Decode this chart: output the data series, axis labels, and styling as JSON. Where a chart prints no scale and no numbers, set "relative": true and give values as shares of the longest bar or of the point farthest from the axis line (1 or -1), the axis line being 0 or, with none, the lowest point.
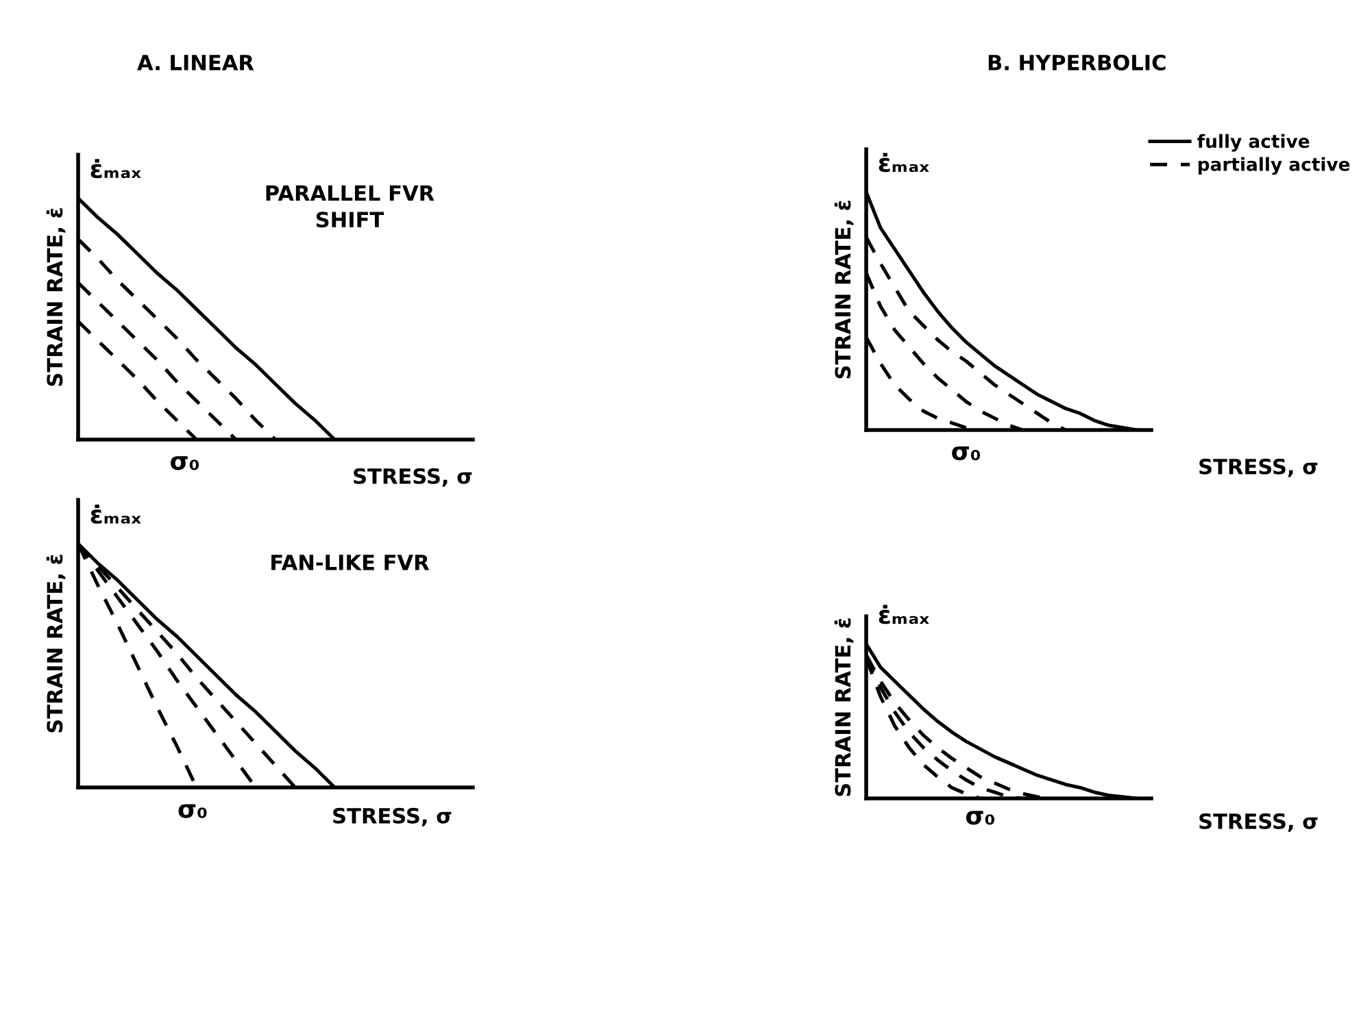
{
  "chart_data": [
    {
      "type": "line",
      "title": "A. LINEAR",
      "xlabel": "STRESS, σ",
      "ylabel": "STRAIN RATE, ε̇",
      "relative": true,
      "categories": [
        null,
        null,
        null,
        null,
        null,
        null,
        null,
        null,
        null,
        null,
        null,
        null,
        null,
        null,
        null,
        null,
        null,
        null,
        null,
        null,
        null
      ],
      "annotations": [
        "ε̇ₘₐₓ",
        "σ₀",
        "PARALLEL FVR\nSHIFT"
      ],
      "series": [
        {
          "color": "#000000",
          "line_style": "solid",
          "values": [
            1,
            0.92,
            0.85,
            0.77,
            0.69,
            0.62,
            0.54,
            0.46,
            0.38,
            0.31,
            0.23,
            0.15,
            0.08,
            0,
            null,
            null,
            null,
            null,
            null,
            null,
            null
          ]
        },
        {
          "color": "#000000",
          "line_style": "dashed",
          "values": [
            0.83,
            0.75,
            0.66,
            0.58,
            0.5,
            0.42,
            0.33,
            0.25,
            0.17,
            0.08,
            0,
            null,
            null,
            null,
            null,
            null,
            null,
            null,
            null,
            null,
            null
          ]
        },
        {
          "color": "#000000",
          "line_style": "dashed",
          "values": [
            0.65,
            0.57,
            0.49,
            0.41,
            0.33,
            0.24,
            0.16,
            0.08,
            0,
            null,
            null,
            null,
            null,
            null,
            null,
            null,
            null,
            null,
            null,
            null,
            null
          ]
        },
        {
          "color": "#000000",
          "line_style": "dashed",
          "values": [
            0.49,
            0.41,
            0.33,
            0.25,
            0.16,
            0.08,
            0,
            null,
            null,
            null,
            null,
            null,
            null,
            null,
            null,
            null,
            null,
            null,
            null,
            null,
            null
          ]
        }
      ]
    },
    {
      "type": "line",
      "title": "B. HYPERBOLIC",
      "xlabel": "STRESS, σ",
      "ylabel": "STRAIN RATE, ε̇",
      "relative": true,
      "legend": "top right",
      "categories": [
        null,
        null,
        null,
        null,
        null,
        null,
        null,
        null,
        null,
        null,
        null,
        null,
        null,
        null,
        null,
        null,
        null,
        null,
        null,
        null,
        null
      ],
      "annotations": [
        "ε̇ₘₐₓ",
        "σ₀"
      ],
      "series": [
        {
          "name": "fully active",
          "color": "#000000",
          "line_style": "solid",
          "values": [
            1,
            0.85,
            0.76,
            0.67,
            0.58,
            0.5,
            0.43,
            0.37,
            0.32,
            0.27,
            0.23,
            0.19,
            0.15,
            0.12,
            0.09,
            0.07,
            0.04,
            0.02,
            0.01,
            0,
            null
          ]
        },
        {
          "name": "partially active",
          "color": "#000000",
          "line_style": "dashed",
          "values": [
            0.81,
            0.7,
            0.6,
            0.5,
            0.44,
            0.38,
            0.33,
            0.29,
            0.24,
            0.19,
            0.15,
            0.11,
            0.07,
            0.03,
            0,
            null,
            null,
            null,
            null,
            null,
            null
          ]
        },
        {
          "color": "#000000",
          "line_style": "dashed",
          "values": [
            0.66,
            0.52,
            0.42,
            0.35,
            0.28,
            0.22,
            0.17,
            0.12,
            0.08,
            0.05,
            0.02,
            0,
            null,
            null,
            null,
            null,
            null,
            null,
            null,
            null,
            null
          ]
        },
        {
          "color": "#000000",
          "line_style": "dashed",
          "values": [
            0.39,
            0.28,
            0.19,
            0.13,
            0.08,
            0.05,
            0.03,
            0.01,
            0,
            null,
            null,
            null,
            null,
            null,
            null,
            null,
            null,
            null,
            null,
            null,
            null
          ]
        }
      ]
    },
    {
      "type": "line",
      "xlabel": "STRESS, σ",
      "ylabel": "STRAIN RATE, ε̇",
      "relative": true,
      "categories": [
        null,
        null,
        null,
        null,
        null,
        null,
        null,
        null,
        null,
        null,
        null,
        null,
        null,
        null,
        null,
        null,
        null,
        null,
        null,
        null,
        null
      ],
      "annotations": [
        "ε̇ₘₐₓ",
        "σ₀",
        "FAN-LIKE FVR"
      ],
      "series": [
        {
          "color": "#000000",
          "line_style": "solid",
          "values": [
            1,
            0.92,
            0.85,
            0.77,
            0.69,
            0.62,
            0.54,
            0.46,
            0.38,
            0.31,
            0.23,
            0.15,
            0.08,
            0,
            null,
            null,
            null,
            null,
            null,
            null,
            null
          ]
        },
        {
          "color": "#000000",
          "line_style": "dashed",
          "values": [
            1,
            0.91,
            0.82,
            0.73,
            0.64,
            0.55,
            0.45,
            0.36,
            0.27,
            0.18,
            0.09,
            0,
            null,
            null,
            null,
            null,
            null,
            null,
            null,
            null,
            null
          ]
        },
        {
          "color": "#000000",
          "line_style": "dashed",
          "values": [
            1,
            0.89,
            0.78,
            0.67,
            0.56,
            0.44,
            0.33,
            0.22,
            0.11,
            0,
            null,
            null,
            null,
            null,
            null,
            null,
            null,
            null,
            null,
            null,
            null
          ]
        },
        {
          "color": "#000000",
          "line_style": "dashed",
          "values": [
            1,
            0.83,
            0.67,
            0.5,
            0.33,
            0.17,
            0,
            null,
            null,
            null,
            null,
            null,
            null,
            null,
            null,
            null,
            null,
            null,
            null,
            null,
            null
          ]
        }
      ]
    },
    {
      "type": "line",
      "xlabel": "STRESS, σ",
      "ylabel": "STRAIN RATE, ε̇",
      "relative": true,
      "categories": [
        null,
        null,
        null,
        null,
        null,
        null,
        null,
        null,
        null,
        null,
        null,
        null,
        null,
        null,
        null,
        null,
        null,
        null,
        null,
        null,
        null
      ],
      "annotations": [
        "ε̇ₘₐₓ",
        "σ₀"
      ],
      "series": [
        {
          "color": "#000000",
          "line_style": "solid",
          "values": [
            1,
            0.85,
            0.76,
            0.67,
            0.58,
            0.5,
            0.43,
            0.37,
            0.32,
            0.27,
            0.23,
            0.19,
            0.15,
            0.12,
            0.09,
            0.07,
            0.04,
            0.02,
            0.01,
            0,
            null
          ]
        },
        {
          "color": "#000000",
          "line_style": "dashed",
          "values": [
            0.93,
            0.76,
            0.62,
            0.51,
            0.41,
            0.33,
            0.26,
            0.2,
            0.14,
            0.1,
            0.06,
            0.03,
            0.01,
            0,
            null,
            null,
            null,
            null,
            null,
            null,
            null
          ]
        },
        {
          "color": "#000000",
          "line_style": "dashed",
          "values": [
            0.92,
            0.72,
            0.56,
            0.43,
            0.33,
            0.25,
            0.18,
            0.12,
            0.07,
            0.04,
            0.01,
            0,
            null,
            null,
            null,
            null,
            null,
            null,
            null,
            null,
            null
          ]
        },
        {
          "color": "#000000",
          "line_style": "dashed",
          "values": [
            0.91,
            0.66,
            0.47,
            0.33,
            0.22,
            0.14,
            0.07,
            0.03,
            0,
            null,
            null,
            null,
            null,
            null,
            null,
            null,
            null,
            null,
            null,
            null,
            null
          ]
        }
      ]
    }
  ]
}
